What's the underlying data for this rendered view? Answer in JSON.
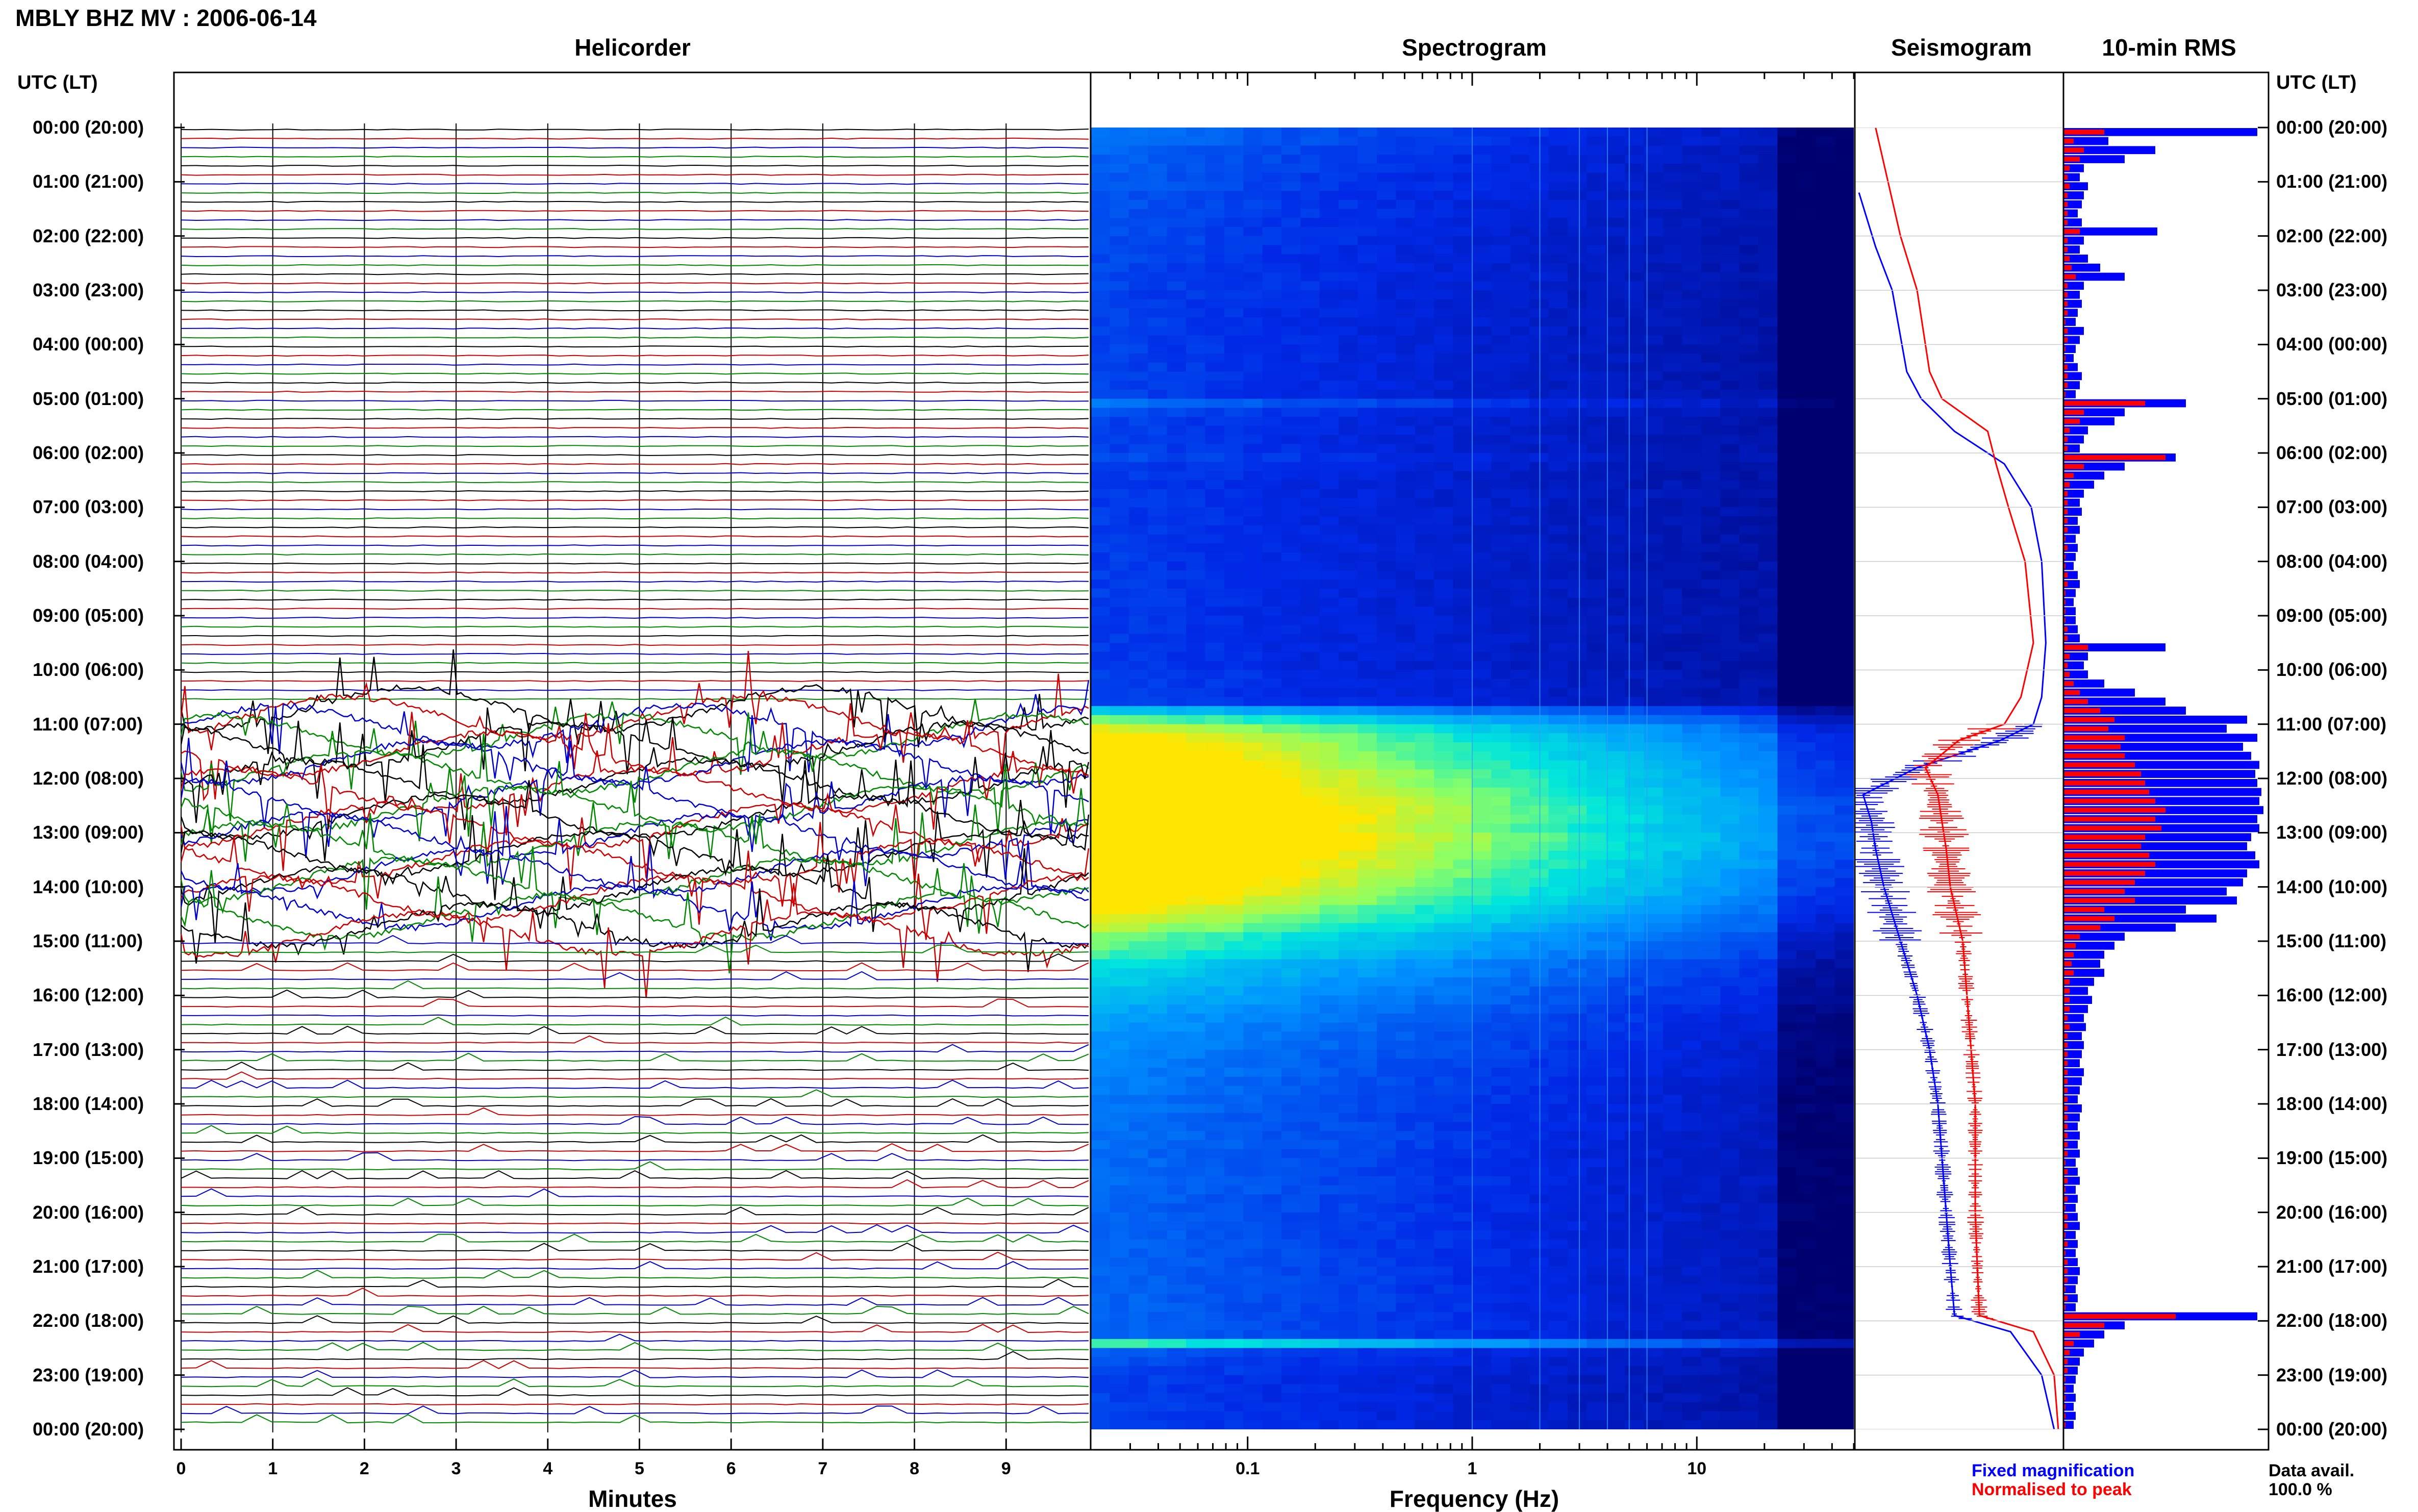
{
  "header": {
    "station": "MBLY BHZ MV : 2006-06-14"
  },
  "panels": {
    "helicorder": "Helicorder",
    "spectrogram": "Spectrogram",
    "seismogram": "Seismogram",
    "rms": "10-min RMS"
  },
  "axes": {
    "left_caption": "UTC (LT)",
    "right_caption": "UTC (LT)",
    "minutes_title": "Minutes",
    "frequency_title": "Frequency (Hz)",
    "minute_ticks": [
      "0",
      "1",
      "2",
      "3",
      "4",
      "5",
      "6",
      "7",
      "8",
      "9"
    ],
    "frequency_ticks": [
      "0.1",
      "1",
      "10"
    ]
  },
  "time_labels": [
    "00:00 (20:00)",
    "01:00 (21:00)",
    "02:00 (22:00)",
    "03:00 (23:00)",
    "04:00 (00:00)",
    "05:00 (01:00)",
    "06:00 (02:00)",
    "07:00 (03:00)",
    "08:00 (04:00)",
    "09:00 (05:00)",
    "10:00 (06:00)",
    "11:00 (07:00)",
    "12:00 (08:00)",
    "13:00 (09:00)",
    "14:00 (10:00)",
    "15:00 (11:00)",
    "16:00 (12:00)",
    "17:00 (13:00)",
    "18:00 (14:00)",
    "19:00 (15:00)",
    "20:00 (16:00)",
    "21:00 (17:00)",
    "22:00 (18:00)",
    "23:00 (19:00)",
    "00:00 (20:00)"
  ],
  "legend": {
    "fixed": "Fixed magnification",
    "normalised": "Normalised to peak",
    "avail_label": "Data avail.",
    "avail_value": "100.0 %"
  },
  "colors": {
    "helicorder_traces": [
      "#000000",
      "#cc0000",
      "#0000cc",
      "#008800"
    ],
    "fixed": "#0000ff",
    "normalised": "#ff0000",
    "spectrogram_low": "#00007a",
    "spectrogram_high": "#ffe000"
  },
  "chart_data": [
    {
      "type": "line",
      "title": "Helicorder",
      "xlabel": "Minutes",
      "xlim": [
        0,
        10
      ],
      "ylabel": "UTC (LT)",
      "note_values": "one trace per 10 minutes; activity strongly elevated 10:40-14:50 UTC, small repetitive events thereafter",
      "active_window_utc": [
        "10:40",
        "14:50"
      ]
    },
    {
      "type": "heatmap",
      "title": "Spectrogram",
      "xlabel": "Frequency (Hz)",
      "x_scale": "log",
      "xlim": [
        0.02,
        50
      ],
      "rows": 144,
      "relative_power": [
        0.3,
        0.3,
        0.28,
        0.27,
        0.27,
        0.26,
        0.26,
        0.25,
        0.25,
        0.25,
        0.24,
        0.24,
        0.24,
        0.23,
        0.23,
        0.23,
        0.23,
        0.23,
        0.22,
        0.22,
        0.22,
        0.22,
        0.22,
        0.22,
        0.22,
        0.22,
        0.22,
        0.22,
        0.22,
        0.22,
        0.3,
        0.24,
        0.22,
        0.22,
        0.22,
        0.22,
        0.24,
        0.22,
        0.21,
        0.21,
        0.21,
        0.21,
        0.21,
        0.21,
        0.21,
        0.21,
        0.21,
        0.21,
        0.21,
        0.21,
        0.21,
        0.21,
        0.21,
        0.21,
        0.21,
        0.21,
        0.21,
        0.21,
        0.21,
        0.21,
        0.22,
        0.22,
        0.22,
        0.23,
        0.45,
        0.6,
        0.7,
        0.75,
        0.78,
        0.8,
        0.82,
        0.84,
        0.86,
        0.88,
        0.9,
        0.92,
        0.92,
        0.9,
        0.94,
        0.92,
        0.9,
        0.88,
        0.86,
        0.84,
        0.82,
        0.78,
        0.74,
        0.7,
        0.66,
        0.6,
        0.58,
        0.55,
        0.5,
        0.48,
        0.46,
        0.44,
        0.42,
        0.4,
        0.38,
        0.37,
        0.36,
        0.35,
        0.34,
        0.33,
        0.33,
        0.32,
        0.32,
        0.31,
        0.31,
        0.3,
        0.3,
        0.3,
        0.3,
        0.29,
        0.29,
        0.29,
        0.29,
        0.29,
        0.28,
        0.28,
        0.28,
        0.28,
        0.28,
        0.28,
        0.28,
        0.28,
        0.28,
        0.28,
        0.28,
        0.28,
        0.28,
        0.28,
        0.28,
        0.28,
        0.55,
        0.26,
        0.24,
        0.23,
        0.22,
        0.22,
        0.22,
        0.22,
        0.22,
        0.22
      ]
    },
    {
      "type": "line",
      "title": "Seismogram",
      "series": [
        {
          "name": "Fixed magnification",
          "utc_hours": [
            0.0,
            1.2,
            2.2,
            3.0,
            4.5,
            5.0,
            5.6,
            6.2,
            7.0,
            8.0,
            9.5,
            10.5,
            11.0,
            11.3,
            11.8,
            12.3,
            12.8,
            13.3,
            14.0,
            15.0,
            16.0,
            17.0,
            18.0,
            19.0,
            20.0,
            21.0,
            21.9,
            22.2,
            23.0,
            24.0
          ],
          "relative_offset": [
            null,
            0.02,
            0.1,
            0.18,
            0.25,
            0.32,
            0.48,
            0.72,
            0.85,
            0.9,
            0.92,
            0.9,
            0.86,
            0.7,
            0.3,
            0.04,
            0.08,
            0.1,
            0.14,
            0.22,
            0.3,
            0.36,
            0.4,
            0.42,
            0.44,
            0.46,
            0.48,
            0.75,
            0.9,
            0.96
          ]
        },
        {
          "name": "Normalised to peak",
          "utc_hours": [
            0.0,
            1.0,
            2.0,
            3.0,
            4.5,
            5.0,
            5.6,
            6.2,
            7.0,
            8.0,
            9.5,
            10.5,
            11.0,
            11.3,
            11.8,
            12.3,
            12.8,
            13.3,
            14.0,
            15.0,
            16.0,
            17.0,
            18.0,
            19.0,
            20.0,
            21.0,
            21.9,
            22.2,
            23.0,
            24.0
          ],
          "relative_offset": [
            0.1,
            0.16,
            0.22,
            0.3,
            0.36,
            0.42,
            0.64,
            0.68,
            0.74,
            0.82,
            0.86,
            0.8,
            0.72,
            0.5,
            0.34,
            0.4,
            0.42,
            0.44,
            0.46,
            0.52,
            0.54,
            0.56,
            0.58,
            0.58,
            0.58,
            0.59,
            0.6,
            0.86,
            0.96,
            0.98
          ]
        }
      ]
    },
    {
      "type": "bar",
      "title": "10-min RMS",
      "orientation": "horizontal",
      "series": [
        {
          "name": "Fixed magnification",
          "values": [
            0.95,
            0.22,
            0.45,
            0.3,
            0.1,
            0.08,
            0.12,
            0.1,
            0.09,
            0.07,
            0.09,
            0.46,
            0.1,
            0.08,
            0.12,
            0.18,
            0.3,
            0.1,
            0.08,
            0.09,
            0.07,
            0.06,
            0.1,
            0.08,
            0.06,
            0.05,
            0.07,
            0.09,
            0.08,
            0.06,
            0.6,
            0.3,
            0.25,
            0.12,
            0.1,
            0.08,
            0.55,
            0.3,
            0.2,
            0.15,
            0.1,
            0.08,
            0.09,
            0.07,
            0.08,
            0.06,
            0.07,
            0.06,
            0.05,
            0.07,
            0.08,
            0.06,
            0.05,
            0.06,
            0.06,
            0.07,
            0.08,
            0.5,
            0.12,
            0.1,
            0.12,
            0.2,
            0.35,
            0.5,
            0.6,
            0.9,
            0.8,
            0.95,
            0.88,
            0.92,
            0.96,
            0.94,
            0.95,
            0.97,
            0.96,
            0.98,
            0.95,
            0.96,
            0.92,
            0.9,
            0.94,
            0.96,
            0.9,
            0.88,
            0.8,
            0.85,
            0.6,
            0.75,
            0.55,
            0.3,
            0.25,
            0.2,
            0.18,
            0.2,
            0.15,
            0.12,
            0.14,
            0.12,
            0.1,
            0.11,
            0.09,
            0.1,
            0.09,
            0.08,
            0.1,
            0.09,
            0.08,
            0.07,
            0.09,
            0.08,
            0.07,
            0.08,
            0.07,
            0.08,
            0.06,
            0.07,
            0.08,
            0.06,
            0.07,
            0.06,
            0.07,
            0.08,
            0.06,
            0.07,
            0.06,
            0.07,
            0.08,
            0.07,
            0.06,
            0.07,
            0.06,
            0.95,
            0.3,
            0.2,
            0.15,
            0.1,
            0.08,
            0.07,
            0.06,
            0.05,
            0.06,
            0.05,
            0.06,
            0.05
          ]
        },
        {
          "name": "Normalised to peak",
          "values": [
            0.2,
            0.05,
            0.1,
            0.08,
            0.03,
            0.02,
            0.03,
            0.02,
            0.02,
            0.02,
            0.02,
            0.08,
            0.02,
            0.02,
            0.03,
            0.04,
            0.06,
            0.02,
            0.02,
            0.02,
            0.02,
            0.01,
            0.02,
            0.02,
            0.01,
            0.01,
            0.02,
            0.02,
            0.02,
            0.01,
            0.4,
            0.1,
            0.08,
            0.03,
            0.02,
            0.02,
            0.5,
            0.1,
            0.05,
            0.03,
            0.02,
            0.02,
            0.02,
            0.02,
            0.02,
            0.01,
            0.02,
            0.01,
            0.01,
            0.02,
            0.02,
            0.01,
            0.01,
            0.01,
            0.01,
            0.02,
            0.02,
            0.12,
            0.03,
            0.02,
            0.03,
            0.05,
            0.08,
            0.12,
            0.18,
            0.25,
            0.22,
            0.3,
            0.28,
            0.3,
            0.35,
            0.38,
            0.4,
            0.42,
            0.45,
            0.5,
            0.45,
            0.48,
            0.4,
            0.38,
            0.42,
            0.45,
            0.4,
            0.35,
            0.3,
            0.35,
            0.2,
            0.25,
            0.18,
            0.08,
            0.06,
            0.05,
            0.04,
            0.05,
            0.03,
            0.03,
            0.03,
            0.03,
            0.02,
            0.03,
            0.02,
            0.02,
            0.02,
            0.02,
            0.02,
            0.02,
            0.02,
            0.02,
            0.02,
            0.02,
            0.02,
            0.02,
            0.02,
            0.02,
            0.01,
            0.02,
            0.02,
            0.01,
            0.02,
            0.01,
            0.02,
            0.02,
            0.01,
            0.02,
            0.01,
            0.02,
            0.02,
            0.02,
            0.01,
            0.02,
            0.01,
            0.55,
            0.2,
            0.08,
            0.05,
            0.03,
            0.02,
            0.02,
            0.01,
            0.01,
            0.01,
            0.01,
            0.01,
            0.01
          ]
        }
      ]
    }
  ]
}
